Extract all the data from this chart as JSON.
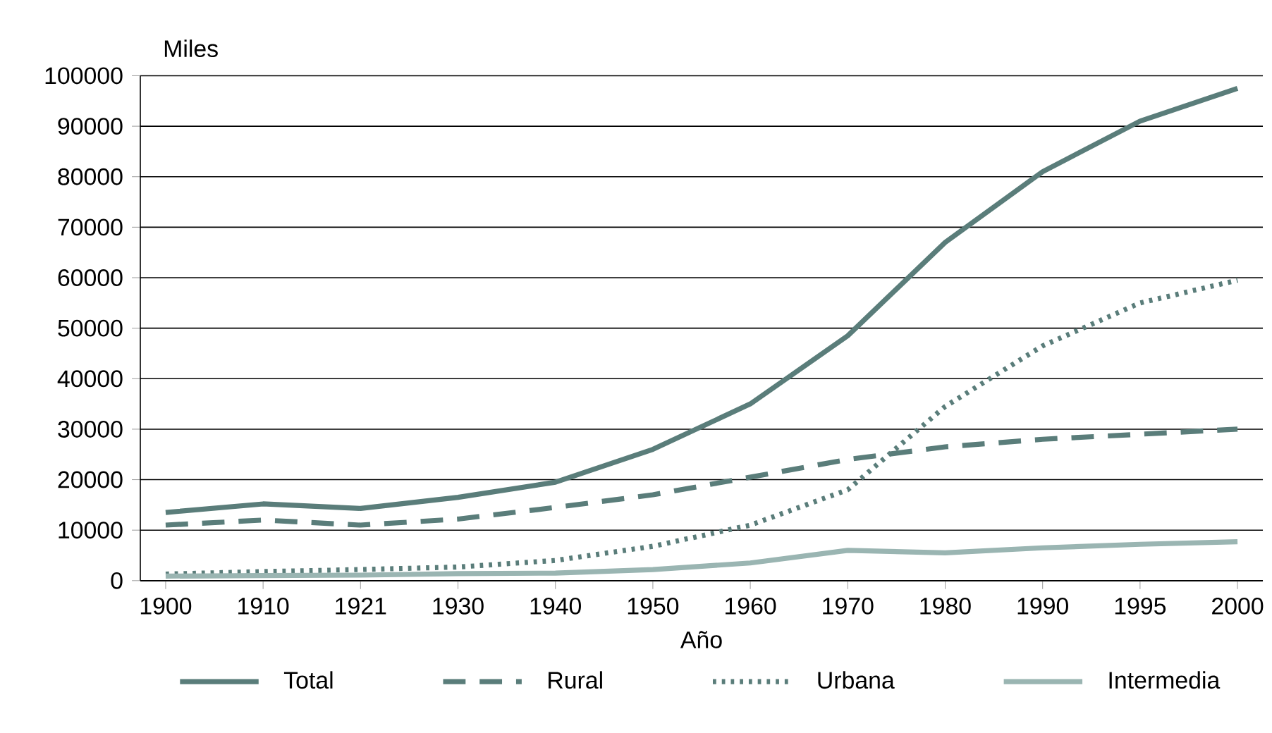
{
  "chart_data": {
    "type": "line",
    "xlabel": "Año",
    "ylabel": "Miles",
    "categories": [
      "1900",
      "1910",
      "1921",
      "1930",
      "1940",
      "1950",
      "1960",
      "1970",
      "1980",
      "1990",
      "1995",
      "2000"
    ],
    "series": [
      {
        "name": "Total",
        "color": "#5a7d7a",
        "line_style": "solid",
        "values": [
          13500,
          15200,
          14300,
          16500,
          19500,
          26000,
          35000,
          48500,
          67000,
          81000,
          91000,
          97500
        ]
      },
      {
        "name": "Rural",
        "color": "#5a7d7a",
        "line_style": "dashed",
        "values": [
          11000,
          12000,
          11000,
          12200,
          14500,
          17000,
          20500,
          24000,
          26500,
          28000,
          29000,
          30000
        ]
      },
      {
        "name": "Urbana",
        "color": "#5a7d7a",
        "line_style": "dotted",
        "values": [
          1300,
          1800,
          2200,
          2700,
          4000,
          6800,
          11000,
          18000,
          34500,
          46500,
          55000,
          59500
        ]
      },
      {
        "name": "Intermedia",
        "color": "#9ab5b2",
        "line_style": "solid",
        "values": [
          900,
          1000,
          1100,
          1400,
          1500,
          2200,
          3500,
          6000,
          5500,
          6500,
          7200,
          7700
        ]
      }
    ],
    "ylim": [
      0,
      100000
    ],
    "yticks": [
      0,
      10000,
      20000,
      30000,
      40000,
      50000,
      60000,
      70000,
      80000,
      90000,
      100000
    ],
    "grid": "y",
    "legend": "bottom",
    "marker": "none"
  }
}
